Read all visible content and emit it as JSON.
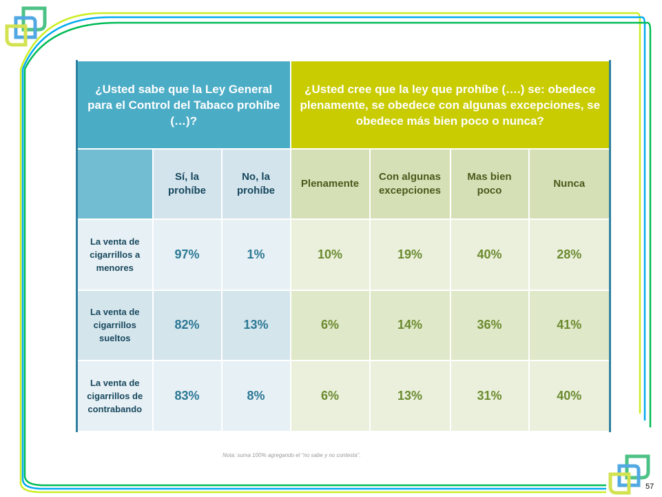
{
  "header": {
    "q1": "¿Usted sabe que la Ley General para el Control del Tabaco prohíbe (…)?",
    "q2": "¿Usted cree que la ley que prohíbe (….) se: obedece plenamente, se obedece con algunas excepciones, se obedece más bien poco o nunca?"
  },
  "columns": [
    "Sí, la prohíbe",
    "No, la prohíbe",
    "Plenamente",
    "Con algunas excepciones",
    "Mas bien poco",
    "Nunca"
  ],
  "rows": [
    {
      "label": "La venta de cigarrillos a menores",
      "values": [
        "97%",
        "1%",
        "10%",
        "19%",
        "40%",
        "28%"
      ]
    },
    {
      "label": "La venta de cigarrillos sueltos",
      "values": [
        "82%",
        "13%",
        "6%",
        "14%",
        "36%",
        "41%"
      ]
    },
    {
      "label": "La venta de cigarrillos de contrabando",
      "values": [
        "83%",
        "8%",
        "6%",
        "13%",
        "31%",
        "40%"
      ]
    }
  ],
  "note": "Nota: suma 100% agregando el “no sabe y no contesta”.",
  "page_number": "57",
  "colors": {
    "blue": "#4bacc6",
    "lime": "#c9cc00",
    "green_line": "#00b050",
    "cyan_line": "#00b0f0",
    "yellow_line": "#ccff33"
  }
}
